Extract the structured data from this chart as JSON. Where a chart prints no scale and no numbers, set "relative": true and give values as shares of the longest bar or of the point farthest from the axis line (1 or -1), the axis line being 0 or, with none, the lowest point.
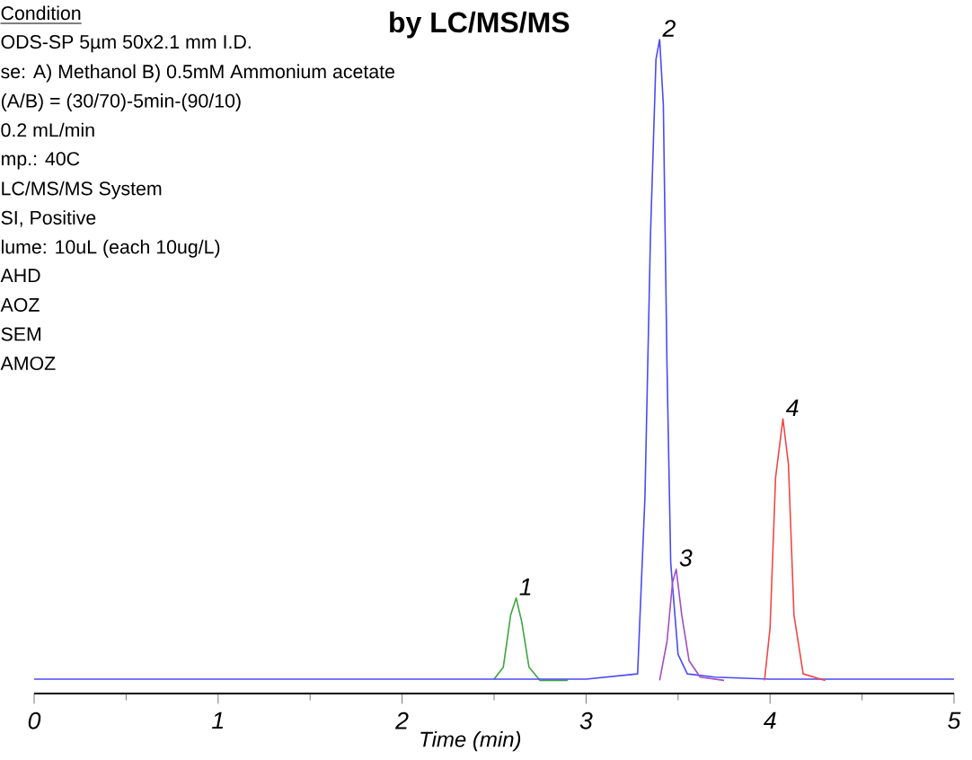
{
  "chart_data": {
    "type": "line",
    "relative": true,
    "title": "by LC/MS/MS",
    "xlabel": "Time (min)",
    "xlim": [
      0,
      5
    ],
    "xticks": [
      0,
      1,
      2,
      3,
      4,
      5
    ],
    "series": [
      {
        "color": "#3da63d",
        "x": [
          2.5,
          2.55,
          2.59,
          2.62,
          2.65,
          2.69,
          2.75,
          2.9
        ],
        "values": [
          0.022,
          0.04,
          0.12,
          0.146,
          0.11,
          0.04,
          0.02,
          0.02
        ]
      },
      {
        "color": "#4a4af5",
        "x": [
          0,
          0.5,
          1,
          1.5,
          2,
          2.5,
          3,
          3.28,
          3.32,
          3.35,
          3.38,
          3.4,
          3.42,
          3.44,
          3.46,
          3.5,
          3.55,
          3.7,
          4,
          4.5,
          5
        ],
        "values": [
          0.022,
          0.022,
          0.022,
          0.022,
          0.022,
          0.022,
          0.022,
          0.03,
          0.3,
          0.7,
          0.97,
          1,
          0.9,
          0.5,
          0.2,
          0.06,
          0.03,
          0.025,
          0.022,
          0.022,
          0.022
        ]
      },
      {
        "color": "#a24fc4",
        "x": [
          3.4,
          3.44,
          3.47,
          3.49,
          3.52,
          3.56,
          3.62,
          3.75
        ],
        "values": [
          0.02,
          0.08,
          0.17,
          0.19,
          0.12,
          0.05,
          0.025,
          0.02
        ]
      },
      {
        "color": "#f04848",
        "x": [
          3.97,
          4.0,
          4.03,
          4.07,
          4.1,
          4.13,
          4.18,
          4.3
        ],
        "values": [
          0.02,
          0.1,
          0.33,
          0.42,
          0.35,
          0.12,
          0.03,
          0.02
        ]
      }
    ],
    "annotations": [
      "Condition",
      "ODS-SP 5µm 50x2.1 mm I.D.",
      "se: A) Methanol    B) 0.5mM Ammonium acetate",
      "(A/B) = (30/70)-5min-(90/10)",
      "0.2 mL/min",
      "mp.: 40C",
      "LC/MS/MS System",
      "SI, Positive",
      "lume: 10uL (each 10ug/L)",
      "AHD",
      "AOZ",
      "SEM",
      "AMOZ",
      {
        "text": "1",
        "x": 2.62,
        "y": 0.146
      },
      {
        "text": "2",
        "x": 3.4,
        "y": 1
      },
      {
        "text": "3",
        "x": 3.49,
        "y": 0.19
      },
      {
        "text": "4",
        "x": 4.07,
        "y": 0.42
      }
    ]
  }
}
